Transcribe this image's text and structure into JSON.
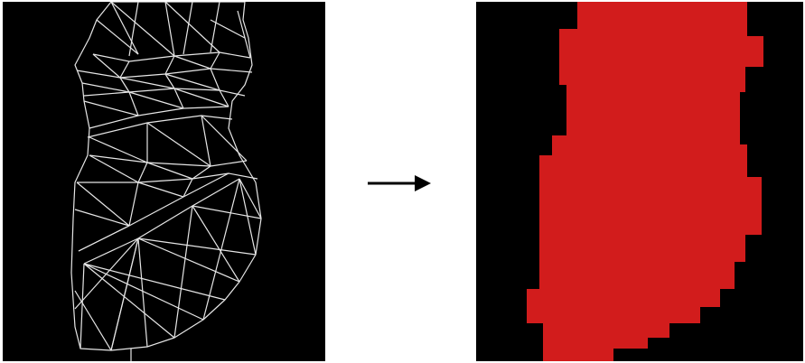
{
  "diagram": {
    "left_panel": {
      "content": "wireframe-mesh",
      "background_color": "#000000",
      "line_color": "#e6e6e6"
    },
    "arrow": {
      "direction": "right",
      "color": "#000000"
    },
    "right_panel": {
      "content": "voxelized-silhouette",
      "background_color": "#000000",
      "fill_color": "#d21c1c"
    }
  }
}
